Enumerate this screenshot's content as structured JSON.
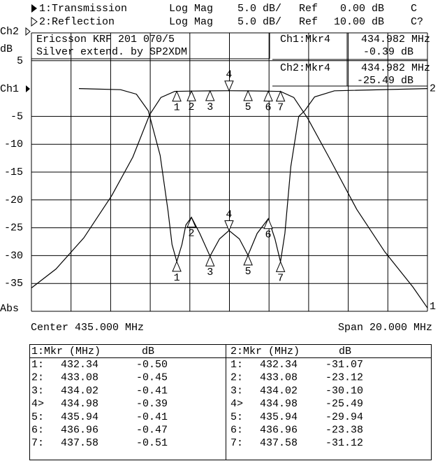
{
  "chart_data": {
    "type": "line",
    "notes": [
      "Ericsson KRF 201 070/5",
      "Silver extend. by SP2XDM"
    ],
    "readouts": [
      {
        "label": "Ch1:Mkr4",
        "freq": "434.982 MHz",
        "value": "-0.39 dB"
      },
      {
        "label": "Ch2:Mkr4",
        "freq": "434.982 MHz",
        "value": "-25.49 dB"
      }
    ],
    "left_labels": {
      "top": "Ch2",
      "unit": "dB",
      "ch1": "Ch1",
      "bottom": "Abs"
    },
    "x_label_left": "Center 435.000 MHz",
    "x_label_right": "Span 20.000 MHz",
    "xlim": [
      425,
      445
    ],
    "xticks": [
      425,
      427,
      429,
      431,
      433,
      435,
      437,
      439,
      441,
      443,
      445
    ],
    "ylim": [
      -40,
      10
    ],
    "yticks": [
      -35,
      -30,
      -25,
      -20,
      -15,
      -10,
      -5,
      5
    ],
    "grid": true,
    "marker_ids": [
      "1",
      "2",
      "3",
      "4",
      "5",
      "6",
      "7"
    ],
    "marker_table_ids": [
      "1:",
      "2:",
      "3:",
      "4>",
      "5:",
      "6:",
      "7:"
    ],
    "marker_freq": [
      432.34,
      433.08,
      434.02,
      434.98,
      435.94,
      436.96,
      437.58
    ],
    "series": [
      {
        "name": "1:Transmission",
        "format": "Log Mag",
        "scale": "5.0 dB/",
        "ref_label": "Ref",
        "ref": "0.00 dB",
        "status": "C",
        "trace_label": "1",
        "table_header": "1:Mkr (MHz)",
        "table_unit": "dB",
        "color": "#000000",
        "x": [
          425,
          426.24,
          427.65,
          429.06,
          430.12,
          430.97,
          431.54,
          432.24,
          432.34,
          433.08,
          434.02,
          434.98,
          435.94,
          436.96,
          437.58,
          438.25,
          438.96,
          440.02,
          441.43,
          442.84,
          444.26,
          445
        ],
        "values": [
          -35.8,
          -32.4,
          -26.8,
          -19.2,
          -12.3,
          -4.7,
          -1.6,
          -0.5,
          -0.5,
          -0.45,
          -0.41,
          -0.39,
          -0.41,
          -0.47,
          -0.51,
          -1.6,
          -5.4,
          -12.3,
          -21.7,
          -29.3,
          -35.6,
          -39.4
        ],
        "marker_values": [
          -0.5,
          -0.45,
          -0.41,
          -0.39,
          -0.41,
          -0.47,
          -0.51
        ],
        "marker_value_labels": [
          "-0.50",
          "-0.45",
          "-0.41",
          "-0.39",
          "-0.41",
          "-0.47",
          "-0.51"
        ]
      },
      {
        "name": "2:Reflection",
        "format": "Log Mag",
        "scale": "5.0 dB/",
        "ref_label": "Ref",
        "ref": "10.00 dB",
        "status": "C?",
        "trace_label": "2",
        "table_header": "2:Mkr (MHz)",
        "table_unit": "dB",
        "color": "#000000",
        "x": [
          427.4,
          429.5,
          430.3,
          430.9,
          431.5,
          431.9,
          432.1,
          432.34,
          432.6,
          432.8,
          433.08,
          433.5,
          434.02,
          434.5,
          434.98,
          435.5,
          435.94,
          436.4,
          436.96,
          437.3,
          437.58,
          437.8,
          438.1,
          438.5,
          438.8,
          439.3,
          440.3,
          445
        ],
        "values": [
          0,
          -0.2,
          -1,
          -4,
          -12,
          -22,
          -28,
          -31.07,
          -28,
          -24.5,
          -23.12,
          -26,
          -30.1,
          -27,
          -25.49,
          -27,
          -29.94,
          -26,
          -23.38,
          -27,
          -31.12,
          -26,
          -14,
          -5,
          -4,
          -1.5,
          -0.4,
          0
        ],
        "marker_values": [
          -31.07,
          -23.12,
          -30.1,
          -25.49,
          -29.94,
          -23.38,
          -31.12
        ],
        "marker_value_labels": [
          "-31.07",
          "-23.12",
          "-30.10",
          "-25.49",
          "-29.94",
          "-23.38",
          "-31.12"
        ]
      }
    ]
  }
}
